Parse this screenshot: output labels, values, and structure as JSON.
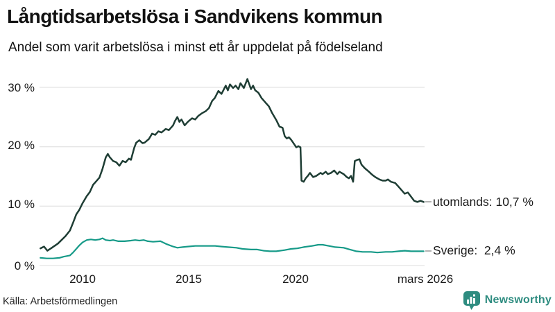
{
  "header": {
    "title": "Långtidsarbetslösa i Sandvikens kommun",
    "subtitle": "Andel som varit arbetslösa i minst ett år uppdelat på födelseland"
  },
  "footer": {
    "source": "Källa: Arbetsförmedlingen",
    "brand": "Newsworthy"
  },
  "colors": {
    "series_utomlands": "#1e3d34",
    "series_sverige": "#169a88",
    "grid": "#dcdcdc",
    "tick_dash": "#999999",
    "text": "#1a1a1a",
    "brand_teal": "#2e8c80"
  },
  "chart_data": {
    "type": "line",
    "title": "Långtidsarbetslösa i Sandvikens kommun",
    "subtitle": "Andel som varit arbetslösa i minst ett år uppdelat på födelseland",
    "unit": "%",
    "grid": true,
    "legend_position": "end-of-line",
    "x_axis": {
      "ticks": [
        "2010",
        "2015",
        "2020",
        "mars 2026"
      ],
      "range_years": [
        2008.0,
        2026.3
      ]
    },
    "y_axis": {
      "ticks": [
        {
          "label": "0 %",
          "value": 0
        },
        {
          "label": "10 %",
          "value": 10
        },
        {
          "label": "20 %",
          "value": 20
        },
        {
          "label": "30 %",
          "value": 30
        }
      ],
      "range": [
        0,
        33
      ]
    },
    "series": [
      {
        "name": "utomlands",
        "color": "#1e3d34",
        "end_label": "utomlands: 10,7 %",
        "end_value_pct": 10.7,
        "points": [
          [
            2008.0,
            2.9
          ],
          [
            2008.17,
            3.2
          ],
          [
            2008.33,
            2.5
          ],
          [
            2008.5,
            2.9
          ],
          [
            2008.67,
            3.3
          ],
          [
            2008.83,
            3.7
          ],
          [
            2009.0,
            4.3
          ],
          [
            2009.2,
            5.0
          ],
          [
            2009.4,
            5.9
          ],
          [
            2009.55,
            7.2
          ],
          [
            2009.7,
            8.6
          ],
          [
            2009.85,
            9.4
          ],
          [
            2010.0,
            10.5
          ],
          [
            2010.2,
            11.7
          ],
          [
            2010.35,
            12.4
          ],
          [
            2010.5,
            13.6
          ],
          [
            2010.65,
            14.2
          ],
          [
            2010.8,
            14.8
          ],
          [
            2010.95,
            16.3
          ],
          [
            2011.1,
            18.2
          ],
          [
            2011.2,
            18.8
          ],
          [
            2011.3,
            18.2
          ],
          [
            2011.45,
            17.6
          ],
          [
            2011.6,
            17.4
          ],
          [
            2011.75,
            16.8
          ],
          [
            2011.9,
            17.6
          ],
          [
            2012.05,
            17.4
          ],
          [
            2012.2,
            18.0
          ],
          [
            2012.3,
            17.8
          ],
          [
            2012.45,
            19.8
          ],
          [
            2012.55,
            20.7
          ],
          [
            2012.7,
            21.1
          ],
          [
            2012.85,
            20.6
          ],
          [
            2012.95,
            20.7
          ],
          [
            2013.15,
            21.3
          ],
          [
            2013.3,
            22.2
          ],
          [
            2013.45,
            22.0
          ],
          [
            2013.6,
            22.6
          ],
          [
            2013.75,
            22.4
          ],
          [
            2013.95,
            23.0
          ],
          [
            2014.1,
            22.8
          ],
          [
            2014.3,
            23.6
          ],
          [
            2014.4,
            24.4
          ],
          [
            2014.5,
            25.0
          ],
          [
            2014.6,
            24.2
          ],
          [
            2014.7,
            24.6
          ],
          [
            2014.85,
            23.6
          ],
          [
            2015.0,
            24.2
          ],
          [
            2015.2,
            24.8
          ],
          [
            2015.35,
            24.6
          ],
          [
            2015.5,
            25.2
          ],
          [
            2015.65,
            25.6
          ],
          [
            2015.85,
            26.0
          ],
          [
            2016.0,
            26.5
          ],
          [
            2016.15,
            27.7
          ],
          [
            2016.28,
            28.2
          ],
          [
            2016.45,
            29.4
          ],
          [
            2016.6,
            28.9
          ],
          [
            2016.8,
            30.3
          ],
          [
            2016.9,
            29.5
          ],
          [
            2017.0,
            30.5
          ],
          [
            2017.15,
            29.9
          ],
          [
            2017.27,
            30.3
          ],
          [
            2017.4,
            29.7
          ],
          [
            2017.5,
            30.7
          ],
          [
            2017.66,
            29.9
          ],
          [
            2017.83,
            31.4
          ],
          [
            2018.0,
            29.7
          ],
          [
            2018.1,
            30.3
          ],
          [
            2018.2,
            29.5
          ],
          [
            2018.35,
            29.1
          ],
          [
            2018.5,
            28.2
          ],
          [
            2018.7,
            27.4
          ],
          [
            2018.85,
            26.8
          ],
          [
            2019.0,
            25.7
          ],
          [
            2019.2,
            24.5
          ],
          [
            2019.35,
            23.4
          ],
          [
            2019.5,
            23.2
          ],
          [
            2019.6,
            21.8
          ],
          [
            2019.7,
            21.4
          ],
          [
            2019.8,
            21.6
          ],
          [
            2019.9,
            21.2
          ],
          [
            2020.0,
            20.7
          ],
          [
            2020.15,
            19.9
          ],
          [
            2020.25,
            20.1
          ],
          [
            2020.35,
            19.9
          ],
          [
            2020.4,
            14.3
          ],
          [
            2020.5,
            14.1
          ],
          [
            2020.6,
            14.7
          ],
          [
            2020.7,
            15.1
          ],
          [
            2020.8,
            15.6
          ],
          [
            2020.95,
            14.9
          ],
          [
            2021.1,
            15.1
          ],
          [
            2021.3,
            15.6
          ],
          [
            2021.4,
            15.4
          ],
          [
            2021.55,
            15.8
          ],
          [
            2021.65,
            15.4
          ],
          [
            2021.8,
            15.6
          ],
          [
            2021.95,
            16.0
          ],
          [
            2022.1,
            15.4
          ],
          [
            2022.2,
            15.8
          ],
          [
            2022.4,
            15.4
          ],
          [
            2022.55,
            14.9
          ],
          [
            2022.65,
            14.7
          ],
          [
            2022.75,
            15.1
          ],
          [
            2022.85,
            14.1
          ],
          [
            2022.93,
            17.6
          ],
          [
            2023.05,
            17.8
          ],
          [
            2023.15,
            17.9
          ],
          [
            2023.25,
            17.0
          ],
          [
            2023.4,
            16.4
          ],
          [
            2023.6,
            15.8
          ],
          [
            2023.75,
            15.3
          ],
          [
            2023.9,
            14.9
          ],
          [
            2024.1,
            14.5
          ],
          [
            2024.25,
            14.3
          ],
          [
            2024.4,
            14.3
          ],
          [
            2024.5,
            14.5
          ],
          [
            2024.65,
            14.1
          ],
          [
            2024.85,
            13.9
          ],
          [
            2025.0,
            13.3
          ],
          [
            2025.15,
            12.7
          ],
          [
            2025.3,
            12.1
          ],
          [
            2025.45,
            12.3
          ],
          [
            2025.6,
            11.6
          ],
          [
            2025.75,
            10.9
          ],
          [
            2025.9,
            10.7
          ],
          [
            2026.05,
            10.9
          ],
          [
            2026.2,
            10.7
          ]
        ]
      },
      {
        "name": "Sverige",
        "color": "#169a88",
        "end_label": "Sverige:  2,4 %",
        "end_value_pct": 2.4,
        "points": [
          [
            2008.0,
            1.3
          ],
          [
            2008.3,
            1.2
          ],
          [
            2008.6,
            1.2
          ],
          [
            2008.9,
            1.3
          ],
          [
            2009.1,
            1.5
          ],
          [
            2009.4,
            1.7
          ],
          [
            2009.55,
            2.2
          ],
          [
            2009.7,
            2.8
          ],
          [
            2009.85,
            3.4
          ],
          [
            2010.0,
            3.9
          ],
          [
            2010.2,
            4.3
          ],
          [
            2010.4,
            4.4
          ],
          [
            2010.6,
            4.3
          ],
          [
            2010.8,
            4.4
          ],
          [
            2010.95,
            4.6
          ],
          [
            2011.1,
            4.3
          ],
          [
            2011.3,
            4.2
          ],
          [
            2011.45,
            4.3
          ],
          [
            2011.7,
            4.1
          ],
          [
            2012.0,
            4.1
          ],
          [
            2012.3,
            4.2
          ],
          [
            2012.5,
            4.3
          ],
          [
            2012.7,
            4.2
          ],
          [
            2012.9,
            4.3
          ],
          [
            2013.1,
            4.1
          ],
          [
            2013.35,
            4.0
          ],
          [
            2013.7,
            4.1
          ],
          [
            2014.0,
            3.6
          ],
          [
            2014.3,
            3.2
          ],
          [
            2014.5,
            3.0
          ],
          [
            2014.75,
            3.1
          ],
          [
            2015.0,
            3.2
          ],
          [
            2015.35,
            3.3
          ],
          [
            2015.7,
            3.3
          ],
          [
            2016.0,
            3.3
          ],
          [
            2016.3,
            3.3
          ],
          [
            2016.6,
            3.2
          ],
          [
            2016.9,
            3.1
          ],
          [
            2017.3,
            3.0
          ],
          [
            2017.6,
            2.8
          ],
          [
            2018.0,
            2.7
          ],
          [
            2018.3,
            2.7
          ],
          [
            2018.6,
            2.5
          ],
          [
            2018.9,
            2.4
          ],
          [
            2019.2,
            2.4
          ],
          [
            2019.6,
            2.6
          ],
          [
            2019.9,
            2.8
          ],
          [
            2020.2,
            2.9
          ],
          [
            2020.5,
            3.1
          ],
          [
            2020.9,
            3.3
          ],
          [
            2021.2,
            3.5
          ],
          [
            2021.4,
            3.5
          ],
          [
            2021.7,
            3.3
          ],
          [
            2022.0,
            3.1
          ],
          [
            2022.4,
            3.0
          ],
          [
            2022.7,
            2.7
          ],
          [
            2023.0,
            2.4
          ],
          [
            2023.3,
            2.3
          ],
          [
            2023.7,
            2.3
          ],
          [
            2024.0,
            2.2
          ],
          [
            2024.4,
            2.3
          ],
          [
            2024.7,
            2.3
          ],
          [
            2025.0,
            2.4
          ],
          [
            2025.3,
            2.5
          ],
          [
            2025.6,
            2.4
          ],
          [
            2025.9,
            2.4
          ],
          [
            2026.2,
            2.4
          ]
        ]
      }
    ]
  }
}
